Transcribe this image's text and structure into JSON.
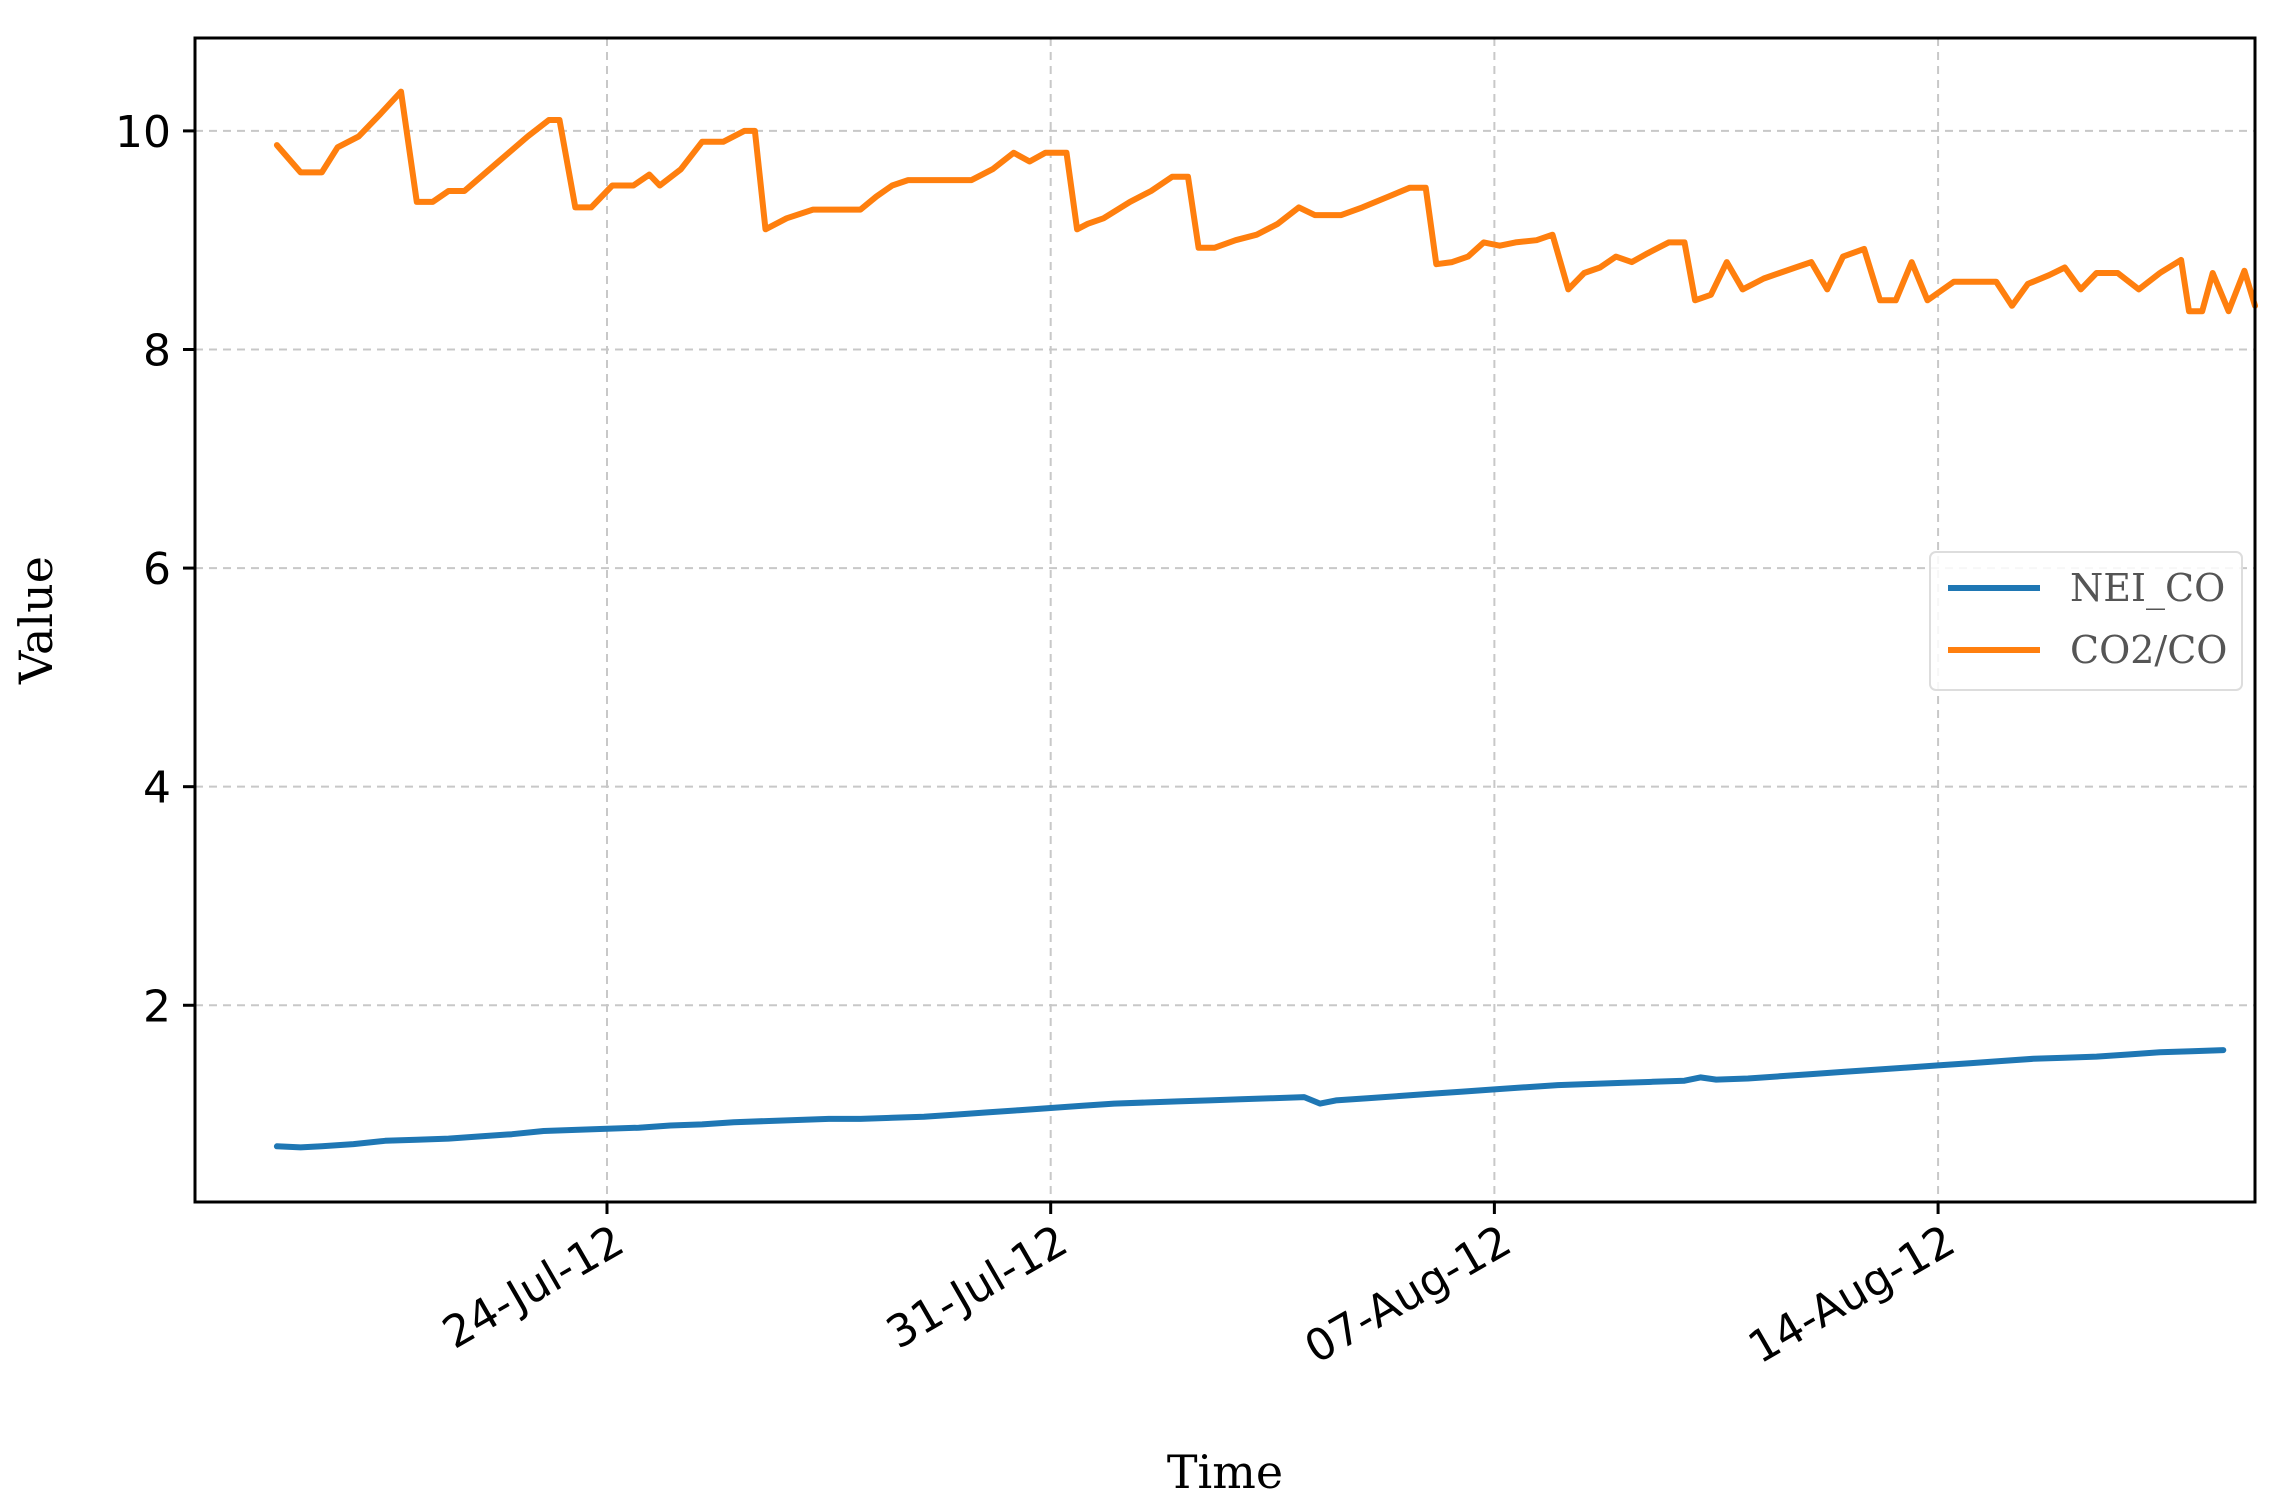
{
  "chart_data": {
    "type": "line",
    "title": "",
    "xlabel": "Time",
    "ylabel": "Value",
    "x_range": [
      "2012-07-17T12:00",
      "2012-08-19T00:00"
    ],
    "ylim": [
      0.2,
      10.85
    ],
    "yticks": [
      2,
      4,
      6,
      8,
      10
    ],
    "xticks": [
      {
        "date": "2012-07-24",
        "label": "24-Jul-12"
      },
      {
        "date": "2012-07-31",
        "label": "31-Jul-12"
      },
      {
        "date": "2012-08-07",
        "label": "07-Aug-12"
      },
      {
        "date": "2012-08-14",
        "label": "14-Aug-12"
      }
    ],
    "grid": true,
    "legend_position": "center-right",
    "series": [
      {
        "name": "NEI_CO",
        "color": "#1f77b4",
        "points": [
          [
            "2012-07-18T19:00",
            0.71
          ],
          [
            "2012-07-19T04:00",
            0.7
          ],
          [
            "2012-07-19T12:00",
            0.71
          ],
          [
            "2012-07-20T00:00",
            0.73
          ],
          [
            "2012-07-20T12:00",
            0.76
          ],
          [
            "2012-07-21T00:00",
            0.77
          ],
          [
            "2012-07-21T12:00",
            0.78
          ],
          [
            "2012-07-22T00:00",
            0.8
          ],
          [
            "2012-07-22T12:00",
            0.82
          ],
          [
            "2012-07-23T00:00",
            0.85
          ],
          [
            "2012-07-23T12:00",
            0.86
          ],
          [
            "2012-07-24T00:00",
            0.87
          ],
          [
            "2012-07-24T12:00",
            0.88
          ],
          [
            "2012-07-25T00:00",
            0.9
          ],
          [
            "2012-07-25T12:00",
            0.91
          ],
          [
            "2012-07-26T00:00",
            0.93
          ],
          [
            "2012-07-26T12:00",
            0.94
          ],
          [
            "2012-07-27T00:00",
            0.95
          ],
          [
            "2012-07-27T12:00",
            0.96
          ],
          [
            "2012-07-28T00:00",
            0.96
          ],
          [
            "2012-07-28T12:00",
            0.97
          ],
          [
            "2012-07-29T00:00",
            0.98
          ],
          [
            "2012-07-29T12:00",
            1.0
          ],
          [
            "2012-07-30T00:00",
            1.02
          ],
          [
            "2012-07-30T12:00",
            1.04
          ],
          [
            "2012-07-31T00:00",
            1.06
          ],
          [
            "2012-07-31T12:00",
            1.08
          ],
          [
            "2012-08-01T00:00",
            1.1
          ],
          [
            "2012-08-01T12:00",
            1.11
          ],
          [
            "2012-08-02T00:00",
            1.12
          ],
          [
            "2012-08-02T12:00",
            1.13
          ],
          [
            "2012-08-03T00:00",
            1.14
          ],
          [
            "2012-08-03T12:00",
            1.15
          ],
          [
            "2012-08-04T00:00",
            1.16
          ],
          [
            "2012-08-04T06:00",
            1.1
          ],
          [
            "2012-08-04T12:00",
            1.13
          ],
          [
            "2012-08-05T00:00",
            1.15
          ],
          [
            "2012-08-05T12:00",
            1.17
          ],
          [
            "2012-08-06T00:00",
            1.19
          ],
          [
            "2012-08-06T12:00",
            1.21
          ],
          [
            "2012-08-07T00:00",
            1.23
          ],
          [
            "2012-08-07T12:00",
            1.25
          ],
          [
            "2012-08-08T00:00",
            1.27
          ],
          [
            "2012-08-08T12:00",
            1.28
          ],
          [
            "2012-08-09T00:00",
            1.29
          ],
          [
            "2012-08-09T12:00",
            1.3
          ],
          [
            "2012-08-10T00:00",
            1.31
          ],
          [
            "2012-08-10T06:00",
            1.34
          ],
          [
            "2012-08-10T12:00",
            1.32
          ],
          [
            "2012-08-11T00:00",
            1.33
          ],
          [
            "2012-08-11T12:00",
            1.35
          ],
          [
            "2012-08-12T00:00",
            1.37
          ],
          [
            "2012-08-12T12:00",
            1.39
          ],
          [
            "2012-08-13T00:00",
            1.41
          ],
          [
            "2012-08-13T12:00",
            1.43
          ],
          [
            "2012-08-14T00:00",
            1.45
          ],
          [
            "2012-08-14T12:00",
            1.47
          ],
          [
            "2012-08-15T00:00",
            1.49
          ],
          [
            "2012-08-15T12:00",
            1.51
          ],
          [
            "2012-08-16T00:00",
            1.52
          ],
          [
            "2012-08-16T12:00",
            1.53
          ],
          [
            "2012-08-17T00:00",
            1.55
          ],
          [
            "2012-08-17T12:00",
            1.57
          ],
          [
            "2012-08-18T00:00",
            1.58
          ],
          [
            "2012-08-18T12:00",
            1.59
          ]
        ]
      },
      {
        "name": "CO2/CO",
        "color": "#ff7f0e",
        "points": [
          [
            "2012-07-18T19:00",
            9.87
          ],
          [
            "2012-07-19T04:00",
            9.62
          ],
          [
            "2012-07-19T12:00",
            9.62
          ],
          [
            "2012-07-19T18:00",
            9.85
          ],
          [
            "2012-07-20T02:00",
            9.95
          ],
          [
            "2012-07-20T10:00",
            10.15
          ],
          [
            "2012-07-20T18:00",
            10.36
          ],
          [
            "2012-07-21T00:00",
            9.35
          ],
          [
            "2012-07-21T06:00",
            9.35
          ],
          [
            "2012-07-21T12:00",
            9.45
          ],
          [
            "2012-07-21T18:00",
            9.45
          ],
          [
            "2012-07-22T06:00",
            9.7
          ],
          [
            "2012-07-22T18:00",
            9.95
          ],
          [
            "2012-07-23T02:00",
            10.1
          ],
          [
            "2012-07-23T06:00",
            10.1
          ],
          [
            "2012-07-23T12:00",
            9.3
          ],
          [
            "2012-07-23T18:00",
            9.3
          ],
          [
            "2012-07-24T02:00",
            9.5
          ],
          [
            "2012-07-24T10:00",
            9.5
          ],
          [
            "2012-07-24T16:00",
            9.6
          ],
          [
            "2012-07-24T20:00",
            9.5
          ],
          [
            "2012-07-25T04:00",
            9.65
          ],
          [
            "2012-07-25T12:00",
            9.9
          ],
          [
            "2012-07-25T20:00",
            9.9
          ],
          [
            "2012-07-26T04:00",
            10.0
          ],
          [
            "2012-07-26T08:00",
            10.0
          ],
          [
            "2012-07-26T12:00",
            9.1
          ],
          [
            "2012-07-26T20:00",
            9.2
          ],
          [
            "2012-07-27T06:00",
            9.28
          ],
          [
            "2012-07-28T00:00",
            9.28
          ],
          [
            "2012-07-28T06:00",
            9.4
          ],
          [
            "2012-07-28T12:00",
            9.5
          ],
          [
            "2012-07-28T18:00",
            9.55
          ],
          [
            "2012-07-29T06:00",
            9.55
          ],
          [
            "2012-07-29T18:00",
            9.55
          ],
          [
            "2012-07-30T02:00",
            9.65
          ],
          [
            "2012-07-30T10:00",
            9.8
          ],
          [
            "2012-07-30T16:00",
            9.72
          ],
          [
            "2012-07-30T22:00",
            9.8
          ],
          [
            "2012-07-31T06:00",
            9.8
          ],
          [
            "2012-07-31T10:00",
            9.1
          ],
          [
            "2012-07-31T14:00",
            9.15
          ],
          [
            "2012-07-31T20:00",
            9.2
          ],
          [
            "2012-08-01T06:00",
            9.35
          ],
          [
            "2012-08-01T14:00",
            9.45
          ],
          [
            "2012-08-01T22:00",
            9.58
          ],
          [
            "2012-08-02T04:00",
            9.58
          ],
          [
            "2012-08-02T08:00",
            8.93
          ],
          [
            "2012-08-02T14:00",
            8.93
          ],
          [
            "2012-08-02T22:00",
            9.0
          ],
          [
            "2012-08-03T06:00",
            9.05
          ],
          [
            "2012-08-03T14:00",
            9.15
          ],
          [
            "2012-08-03T22:00",
            9.3
          ],
          [
            "2012-08-04T04:00",
            9.23
          ],
          [
            "2012-08-04T14:00",
            9.23
          ],
          [
            "2012-08-04T22:00",
            9.3
          ],
          [
            "2012-08-05T08:00",
            9.4
          ],
          [
            "2012-08-05T16:00",
            9.48
          ],
          [
            "2012-08-05T22:00",
            9.48
          ],
          [
            "2012-08-06T02:00",
            8.78
          ],
          [
            "2012-08-06T08:00",
            8.8
          ],
          [
            "2012-08-06T14:00",
            8.85
          ],
          [
            "2012-08-06T20:00",
            8.98
          ],
          [
            "2012-08-07T02:00",
            8.95
          ],
          [
            "2012-08-07T08:00",
            8.98
          ],
          [
            "2012-08-07T16:00",
            9.0
          ],
          [
            "2012-08-07T22:00",
            9.05
          ],
          [
            "2012-08-08T04:00",
            8.55
          ],
          [
            "2012-08-08T10:00",
            8.7
          ],
          [
            "2012-08-08T16:00",
            8.75
          ],
          [
            "2012-08-08T22:00",
            8.85
          ],
          [
            "2012-08-09T04:00",
            8.8
          ],
          [
            "2012-08-09T10:00",
            8.88
          ],
          [
            "2012-08-09T18:00",
            8.98
          ],
          [
            "2012-08-10T00:00",
            8.98
          ],
          [
            "2012-08-10T04:00",
            8.45
          ],
          [
            "2012-08-10T10:00",
            8.5
          ],
          [
            "2012-08-10T16:00",
            8.8
          ],
          [
            "2012-08-10T22:00",
            8.55
          ],
          [
            "2012-08-11T06:00",
            8.65
          ],
          [
            "2012-08-11T12:00",
            8.7
          ],
          [
            "2012-08-11T18:00",
            8.75
          ],
          [
            "2012-08-12T00:00",
            8.8
          ],
          [
            "2012-08-12T06:00",
            8.55
          ],
          [
            "2012-08-12T12:00",
            8.85
          ],
          [
            "2012-08-12T20:00",
            8.92
          ],
          [
            "2012-08-13T02:00",
            8.45
          ],
          [
            "2012-08-13T08:00",
            8.45
          ],
          [
            "2012-08-13T14:00",
            8.8
          ],
          [
            "2012-08-13T20:00",
            8.45
          ],
          [
            "2012-08-14T06:00",
            8.62
          ],
          [
            "2012-08-14T14:00",
            8.62
          ],
          [
            "2012-08-14T22:00",
            8.62
          ],
          [
            "2012-08-15T04:00",
            8.4
          ],
          [
            "2012-08-15T10:00",
            8.6
          ],
          [
            "2012-08-15T18:00",
            8.68
          ],
          [
            "2012-08-16T00:00",
            8.75
          ],
          [
            "2012-08-16T06:00",
            8.55
          ],
          [
            "2012-08-16T12:00",
            8.7
          ],
          [
            "2012-08-16T20:00",
            8.7
          ],
          [
            "2012-08-17T04:00",
            8.55
          ],
          [
            "2012-08-17T12:00",
            8.7
          ],
          [
            "2012-08-17T20:00",
            8.82
          ],
          [
            "2012-08-17T23:00",
            8.35
          ],
          [
            "2012-08-18T04:00",
            8.35
          ],
          [
            "2012-08-18T08:00",
            8.7
          ],
          [
            "2012-08-18T14:00",
            8.35
          ],
          [
            "2012-08-18T20:00",
            8.72
          ],
          [
            "2012-08-19T00:00",
            8.4
          ]
        ]
      }
    ]
  }
}
